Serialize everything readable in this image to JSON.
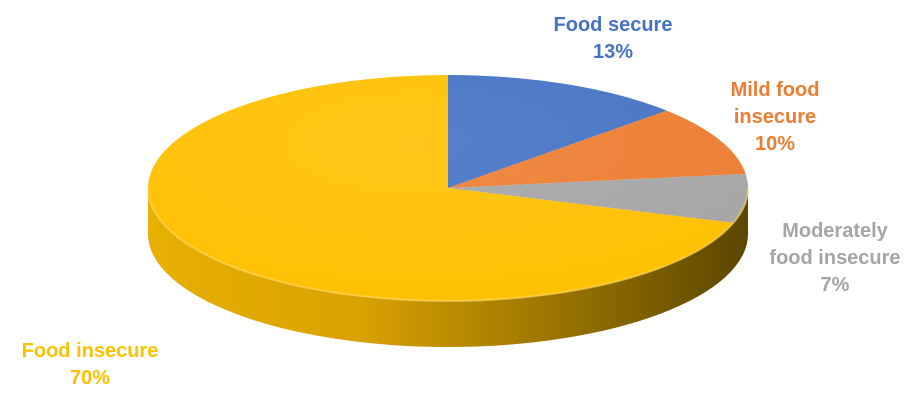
{
  "chart_data": {
    "type": "pie",
    "style": "3d",
    "categories": [
      "Food secure",
      "Mild food insecure",
      "Moderately food insecure",
      "Food insecure"
    ],
    "values": [
      13,
      10,
      7,
      70
    ],
    "colors": [
      "#4472C4",
      "#ED7D31",
      "#A5A5A5",
      "#FFC000"
    ],
    "legend": "none",
    "labels": [
      {
        "lines": [
          "Food secure"
        ],
        "value": "13%",
        "color": "#4472C4"
      },
      {
        "lines": [
          "Mild food",
          "insecure"
        ],
        "value": "10%",
        "color": "#ED7D31"
      },
      {
        "lines": [
          "Moderately",
          "food insecure"
        ],
        "value": "7%",
        "color": "#A5A5A5"
      },
      {
        "lines": [
          "Food insecure"
        ],
        "value": "70%",
        "color": "#FFC000"
      }
    ]
  }
}
